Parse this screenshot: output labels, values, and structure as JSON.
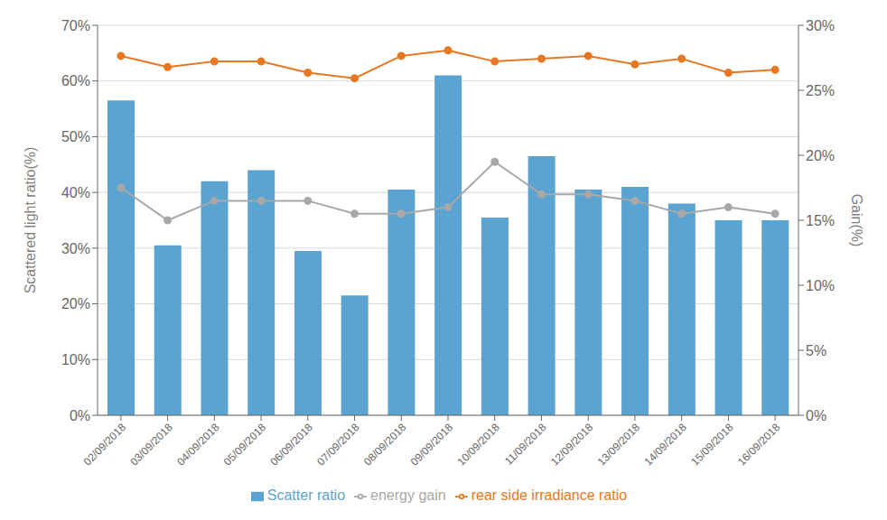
{
  "chart_data": {
    "type": "bar",
    "categories": [
      "02/09/2018",
      "03/09/2018",
      "04/09/2018",
      "05/09/2018",
      "06/09/2018",
      "07/09/2018",
      "08/09/2018",
      "09/09/2018",
      "10/09/2018",
      "11/09/2018",
      "12/09/2018",
      "13/09/2018",
      "14/09/2018",
      "15/09/2018",
      "16/09/2018"
    ],
    "series": [
      {
        "name": "Scatter ratio",
        "type": "bar",
        "color": "#5BA3D0",
        "values": [
          56.5,
          30.5,
          42.0,
          44.0,
          29.5,
          21.5,
          40.5,
          61.0,
          35.5,
          46.5,
          40.5,
          41.0,
          38.0,
          35.0,
          35.0
        ]
      },
      {
        "name": "rear side irradiance ratio",
        "type": "line",
        "color": "#E87722",
        "marker": "circle",
        "values": [
          64.5,
          62.5,
          63.5,
          63.5,
          61.5,
          60.5,
          64.5,
          65.5,
          63.5,
          64.0,
          64.5,
          63.0,
          64.0,
          61.5,
          62.0
        ]
      },
      {
        "name": "energy gain",
        "type": "line",
        "color": "#A8A8A8",
        "marker": "circle",
        "axis": "y2",
        "values": [
          17.5,
          15.0,
          16.5,
          16.5,
          16.5,
          15.5,
          15.5,
          16.0,
          19.5,
          17.0,
          17.0,
          16.5,
          15.5,
          16.0,
          15.5
        ]
      }
    ],
    "ylabel": "Scattered light ratio(%)",
    "y2label": "Gain(%)",
    "ylim": [
      0,
      70
    ],
    "yticks": [
      {
        "value": 0,
        "label": "0%"
      },
      {
        "value": 10,
        "label": "10%"
      },
      {
        "value": 20,
        "label": "20%"
      },
      {
        "value": 30,
        "label": "30%"
      },
      {
        "value": 40,
        "label": "40%"
      },
      {
        "value": 50,
        "label": "50%"
      },
      {
        "value": 60,
        "label": "60%"
      },
      {
        "value": 70,
        "label": "70%"
      }
    ],
    "y2lim": [
      0,
      30
    ],
    "y2ticks": [
      {
        "value": 0,
        "label": "0%"
      },
      {
        "value": 5,
        "label": "5%"
      },
      {
        "value": 10,
        "label": "10%"
      },
      {
        "value": 15,
        "label": "15%"
      },
      {
        "value": 20,
        "label": "20%"
      },
      {
        "value": 25,
        "label": "25%"
      },
      {
        "value": 30,
        "label": "30%"
      }
    ],
    "grid": true,
    "legend": "bottom"
  }
}
